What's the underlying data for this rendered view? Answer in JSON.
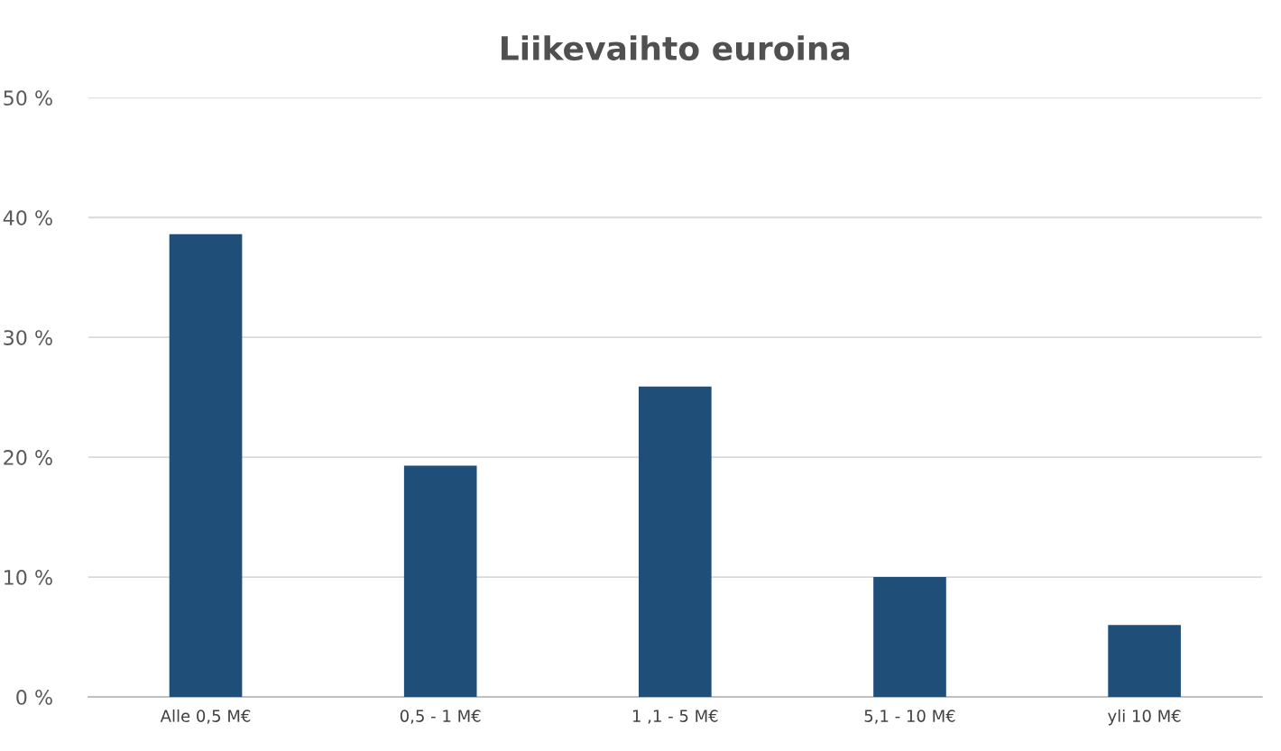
{
  "chart_data": {
    "type": "bar",
    "title": "Liikevaihto euroina",
    "categories": [
      "Alle 0,5 M€",
      "0,5 - 1 M€",
      "1 ,1 - 5 M€",
      "5,1 - 10 M€",
      "yli 10 M€"
    ],
    "values": [
      38.6,
      19.3,
      25.9,
      10.0,
      6.0
    ],
    "color": "#1f4e79",
    "ylim": [
      0,
      50
    ],
    "yticks": [
      {
        "value": 0,
        "label": "0 %"
      },
      {
        "value": 10,
        "label": "10 %"
      },
      {
        "value": 20,
        "label": "20 %"
      },
      {
        "value": 30,
        "label": "30 %"
      },
      {
        "value": 40,
        "label": "40 %"
      },
      {
        "value": 50,
        "label": "50 %"
      }
    ],
    "grid": "y",
    "legend": false
  }
}
